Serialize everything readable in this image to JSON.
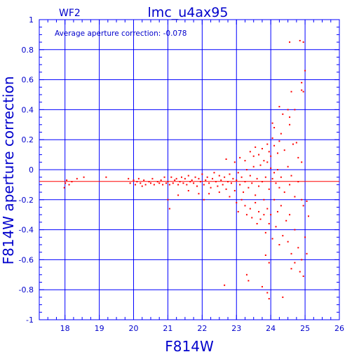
{
  "chart_data": {
    "type": "scatter",
    "title": "lmc_u4ax95",
    "chip_label": "WF2",
    "annotation": "Average aperture correction:  -0.078",
    "xlabel": "F814W",
    "ylabel": "F814W aperture correction",
    "xlim": [
      17.25,
      26
    ],
    "ylim": [
      -1,
      1
    ],
    "x_ticks": [
      18,
      19,
      20,
      21,
      22,
      23,
      24,
      25,
      26
    ],
    "y_ticks": [
      -1,
      -0.8,
      -0.6,
      -0.4,
      -0.2,
      0,
      0.2,
      0.4,
      0.6,
      0.8,
      1
    ],
    "x_tick_labels": [
      "18",
      "19",
      "20",
      "21",
      "22",
      "23",
      "24",
      "25",
      "26"
    ],
    "y_tick_labels": [
      "-1",
      "-0.8",
      "-0.6",
      "-0.4",
      "-0.2",
      "0",
      "0.2",
      "0.4",
      "0.6",
      "0.8",
      "1"
    ],
    "grid": true,
    "reference_line": {
      "y": -0.078,
      "color": "#ff0000"
    },
    "colors": {
      "frame": "#0000ff",
      "points": "#ff0000",
      "text": "#0000cc"
    },
    "points": [
      [
        18.01,
        -0.09
      ],
      [
        18.05,
        -0.07
      ],
      [
        18.12,
        -0.1
      ],
      [
        18.2,
        -0.08
      ],
      [
        17.98,
        -0.12
      ],
      [
        18.35,
        -0.06
      ],
      [
        18.55,
        -0.05
      ],
      [
        19.2,
        -0.05
      ],
      [
        19.85,
        -0.06
      ],
      [
        19.9,
        -0.09
      ],
      [
        20.0,
        -0.07
      ],
      [
        20.05,
        -0.1
      ],
      [
        20.1,
        -0.08
      ],
      [
        20.15,
        -0.06
      ],
      [
        20.2,
        -0.09
      ],
      [
        20.25,
        -0.11
      ],
      [
        20.3,
        -0.07
      ],
      [
        20.35,
        -0.1
      ],
      [
        20.45,
        -0.08
      ],
      [
        20.5,
        -0.09
      ],
      [
        20.55,
        -0.06
      ],
      [
        20.6,
        -0.1
      ],
      [
        20.7,
        -0.08
      ],
      [
        20.75,
        -0.09
      ],
      [
        20.8,
        -0.07
      ],
      [
        20.85,
        -0.1
      ],
      [
        20.9,
        -0.05
      ],
      [
        20.95,
        -0.09
      ],
      [
        21.0,
        -0.08
      ],
      [
        21.05,
        -0.1
      ],
      [
        21.1,
        -0.05
      ],
      [
        21.15,
        -0.09
      ],
      [
        21.2,
        -0.07
      ],
      [
        21.25,
        -0.06
      ],
      [
        21.3,
        -0.1
      ],
      [
        21.35,
        -0.08
      ],
      [
        21.4,
        -0.05
      ],
      [
        21.45,
        -0.09
      ],
      [
        21.5,
        -0.06
      ],
      [
        21.55,
        -0.1
      ],
      [
        21.6,
        -0.04
      ],
      [
        21.65,
        -0.08
      ],
      [
        21.7,
        -0.07
      ],
      [
        21.75,
        -0.09
      ],
      [
        21.8,
        -0.05
      ],
      [
        21.85,
        -0.11
      ],
      [
        21.9,
        -0.06
      ],
      [
        21.95,
        -0.08
      ],
      [
        22.0,
        -0.03
      ],
      [
        22.05,
        -0.1
      ],
      [
        22.1,
        -0.07
      ],
      [
        22.15,
        -0.05
      ],
      [
        22.2,
        -0.09
      ],
      [
        22.25,
        -0.12
      ],
      [
        22.3,
        -0.06
      ],
      [
        22.35,
        -0.02
      ],
      [
        22.4,
        -0.08
      ],
      [
        22.45,
        -0.11
      ],
      [
        22.5,
        -0.04
      ],
      [
        22.55,
        -0.07
      ],
      [
        22.6,
        -0.1
      ],
      [
        22.65,
        -0.05
      ],
      [
        22.7,
        -0.13
      ],
      [
        22.75,
        -0.08
      ],
      [
        22.8,
        -0.03
      ],
      [
        22.85,
        -0.09
      ],
      [
        22.9,
        -0.06
      ],
      [
        22.95,
        -0.14
      ],
      [
        23.0,
        -0.07
      ],
      [
        23.05,
        -0.02
      ],
      [
        23.1,
        -0.1
      ],
      [
        23.15,
        -0.05
      ],
      [
        23.2,
        -0.15
      ],
      [
        23.25,
        -0.08
      ],
      [
        23.3,
        0.0
      ],
      [
        23.35,
        -0.12
      ],
      [
        23.4,
        -0.04
      ],
      [
        23.45,
        -0.09
      ],
      [
        23.5,
        0.02
      ],
      [
        23.55,
        -0.17
      ],
      [
        23.6,
        -0.06
      ],
      [
        23.65,
        -0.11
      ],
      [
        23.7,
        0.03
      ],
      [
        23.75,
        -0.08
      ],
      [
        23.8,
        -0.2
      ],
      [
        23.85,
        -0.05
      ],
      [
        23.9,
        0.05
      ],
      [
        23.95,
        -0.13
      ],
      [
        21.0,
        -0.2
      ],
      [
        21.05,
        -0.26
      ],
      [
        21.3,
        -0.17
      ],
      [
        21.6,
        -0.14
      ],
      [
        21.9,
        -0.16
      ],
      [
        22.05,
        -0.2
      ],
      [
        22.2,
        -0.16
      ],
      [
        22.5,
        -0.15
      ],
      [
        22.8,
        -0.18
      ],
      [
        23.0,
        -0.22
      ],
      [
        23.05,
        -0.28
      ],
      [
        23.15,
        -0.2
      ],
      [
        23.25,
        -0.24
      ],
      [
        23.3,
        -0.3
      ],
      [
        23.4,
        -0.26
      ],
      [
        23.45,
        -0.32
      ],
      [
        23.55,
        -0.22
      ],
      [
        23.6,
        -0.36
      ],
      [
        23.65,
        -0.28
      ],
      [
        23.7,
        -0.33
      ],
      [
        23.8,
        -0.3
      ],
      [
        23.85,
        -0.42
      ],
      [
        23.9,
        -0.26
      ],
      [
        23.95,
        -0.36
      ],
      [
        24.0,
        -0.3
      ],
      [
        24.05,
        -0.46
      ],
      [
        24.1,
        -0.2
      ],
      [
        24.15,
        -0.38
      ],
      [
        24.2,
        -0.28
      ],
      [
        24.25,
        -0.5
      ],
      [
        24.3,
        -0.24
      ],
      [
        24.35,
        -0.44
      ],
      [
        24.45,
        -0.34
      ],
      [
        24.5,
        -0.48
      ],
      [
        24.55,
        -0.3
      ],
      [
        24.6,
        -0.56
      ],
      [
        24.7,
        -0.4
      ],
      [
        24.8,
        -0.52
      ],
      [
        24.9,
        -0.6
      ],
      [
        25.0,
        -0.45
      ],
      [
        24.6,
        -0.66
      ],
      [
        24.7,
        -0.62
      ],
      [
        24.85,
        -0.68
      ],
      [
        24.95,
        -0.71
      ],
      [
        25.05,
        -0.56
      ],
      [
        25.1,
        -0.31
      ],
      [
        23.75,
        -0.78
      ],
      [
        23.3,
        -0.7
      ],
      [
        23.9,
        -0.82
      ],
      [
        22.65,
        -0.77
      ],
      [
        23.35,
        -0.74
      ],
      [
        23.95,
        -0.86
      ],
      [
        23.85,
        -0.57
      ],
      [
        24.35,
        -0.85
      ],
      [
        23.95,
        -0.62
      ],
      [
        22.7,
        0.07
      ],
      [
        22.95,
        0.05
      ],
      [
        23.1,
        0.08
      ],
      [
        23.25,
        0.06
      ],
      [
        23.4,
        0.12
      ],
      [
        23.5,
        0.09
      ],
      [
        23.55,
        0.15
      ],
      [
        23.65,
        0.1
      ],
      [
        23.75,
        0.14
      ],
      [
        23.8,
        0.06
      ],
      [
        23.9,
        0.17
      ],
      [
        23.95,
        0.12
      ],
      [
        24.0,
        0.09
      ],
      [
        24.05,
        0.21
      ],
      [
        24.1,
        0.16
      ],
      [
        24.2,
        0.11
      ],
      [
        24.25,
        0.19
      ],
      [
        24.3,
        0.24
      ],
      [
        24.4,
        0.13
      ],
      [
        24.55,
        0.3
      ],
      [
        24.65,
        0.17
      ],
      [
        24.8,
        0.08
      ],
      [
        24.9,
        0.05
      ],
      [
        24.75,
        0.18
      ],
      [
        24.1,
        0.28
      ],
      [
        24.05,
        0.31
      ],
      [
        24.25,
        0.42
      ],
      [
        24.35,
        0.37
      ],
      [
        24.5,
        0.4
      ],
      [
        24.55,
        0.35
      ],
      [
        24.6,
        0.52
      ],
      [
        24.7,
        0.4
      ],
      [
        24.9,
        0.53
      ],
      [
        24.95,
        0.52
      ],
      [
        25.0,
        0.66
      ],
      [
        24.55,
        0.85
      ],
      [
        24.85,
        0.86
      ],
      [
        24.95,
        0.85
      ],
      [
        24.9,
        0.58
      ],
      [
        24.0,
        0.01
      ],
      [
        24.05,
        -0.06
      ],
      [
        24.1,
        -0.02
      ],
      [
        24.15,
        -0.09
      ],
      [
        24.2,
        0.0
      ],
      [
        24.25,
        -0.12
      ],
      [
        24.3,
        -0.05
      ],
      [
        24.4,
        -0.15
      ],
      [
        24.5,
        0.02
      ],
      [
        24.55,
        -0.1
      ],
      [
        24.6,
        -0.04
      ],
      [
        24.7,
        -0.18
      ],
      [
        24.8,
        -0.08
      ],
      [
        24.9,
        -0.2
      ],
      [
        24.95,
        -0.24
      ],
      [
        25.05,
        -0.21
      ]
    ]
  }
}
